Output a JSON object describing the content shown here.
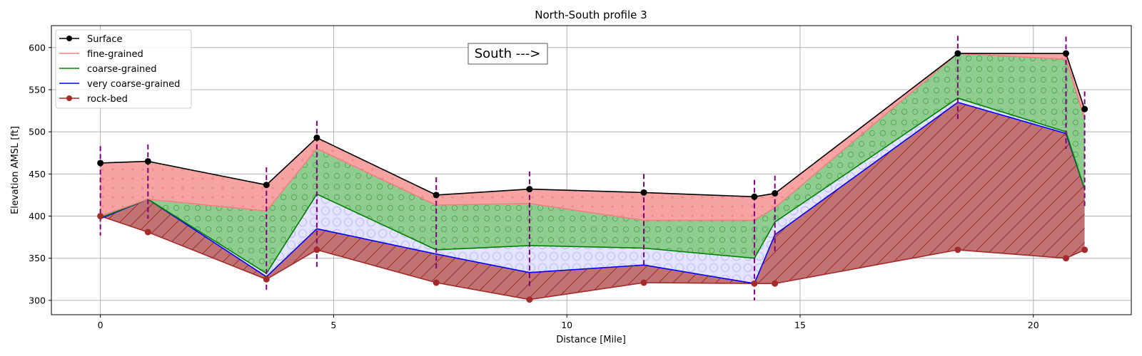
{
  "chart_data": {
    "type": "area",
    "title": "North-South profile 3",
    "xlabel": "Distance [Mile]",
    "ylabel": "Elevation AMSL [ft]",
    "xlim": [
      -1.05,
      22.1
    ],
    "ylim": [
      283,
      626
    ],
    "xticks": [
      0,
      5,
      10,
      15,
      20
    ],
    "yticks": [
      300,
      350,
      400,
      450,
      500,
      550,
      600
    ],
    "grid": true,
    "legend_position": "upper-left",
    "annotation": "South --->",
    "x": [
      0,
      1.02,
      3.56,
      4.64,
      7.2,
      9.2,
      11.65,
      14.02,
      14.46,
      18.38,
      20.7,
      21.1
    ],
    "series": [
      {
        "name": "Surface",
        "color": "#000000",
        "marker": "circle",
        "values": [
          463,
          465,
          437,
          493,
          425,
          432,
          428,
          423,
          427,
          593,
          593,
          527
        ]
      },
      {
        "name": "fine-grained",
        "color": "#f08080",
        "marker": "none",
        "values": [
          400,
          420,
          406,
          480,
          413,
          415,
          395,
          395,
          410,
          593,
          586,
          515
        ]
      },
      {
        "name": "coarse-grained",
        "color": "#008000",
        "marker": "none",
        "values": [
          398,
          420,
          332,
          426,
          360,
          365,
          362,
          350,
          393,
          540,
          500,
          432
        ]
      },
      {
        "name": "very coarse-grained",
        "color": "#0000ff",
        "marker": "none",
        "values": [
          397,
          420,
          328,
          385,
          355,
          333,
          342,
          320,
          378,
          535,
          498,
          432
        ]
      },
      {
        "name": "rock-bed",
        "color": "#a52a2a",
        "marker": "circle",
        "values": [
          400,
          381,
          325,
          360,
          321,
          301,
          321,
          320,
          320,
          360,
          350,
          360
        ]
      }
    ],
    "boreholes": [
      {
        "x": 0,
        "ymin": 377,
        "ymax": 483
      },
      {
        "x": 1.02,
        "ymin": 397,
        "ymax": 485
      },
      {
        "x": 3.56,
        "ymin": 310,
        "ymax": 458
      },
      {
        "x": 4.64,
        "ymin": 338,
        "ymax": 513
      },
      {
        "x": 7.2,
        "ymin": 335,
        "ymax": 446
      },
      {
        "x": 9.2,
        "ymin": 315,
        "ymax": 453
      },
      {
        "x": 11.65,
        "ymin": 340,
        "ymax": 450
      },
      {
        "x": 14.02,
        "ymin": 300,
        "ymax": 443
      },
      {
        "x": 14.46,
        "ymin": 356,
        "ymax": 448
      },
      {
        "x": 18.38,
        "ymin": 515,
        "ymax": 614
      },
      {
        "x": 20.7,
        "ymin": 480,
        "ymax": 613
      },
      {
        "x": 21.1,
        "ymin": 410,
        "ymax": 548
      }
    ],
    "fills": {
      "fine": "#f6a3a3",
      "coarse": "#8fcc8f",
      "very_coarse": "#e4e4ff",
      "rock": "#c17272",
      "borehole": "#800080"
    }
  }
}
